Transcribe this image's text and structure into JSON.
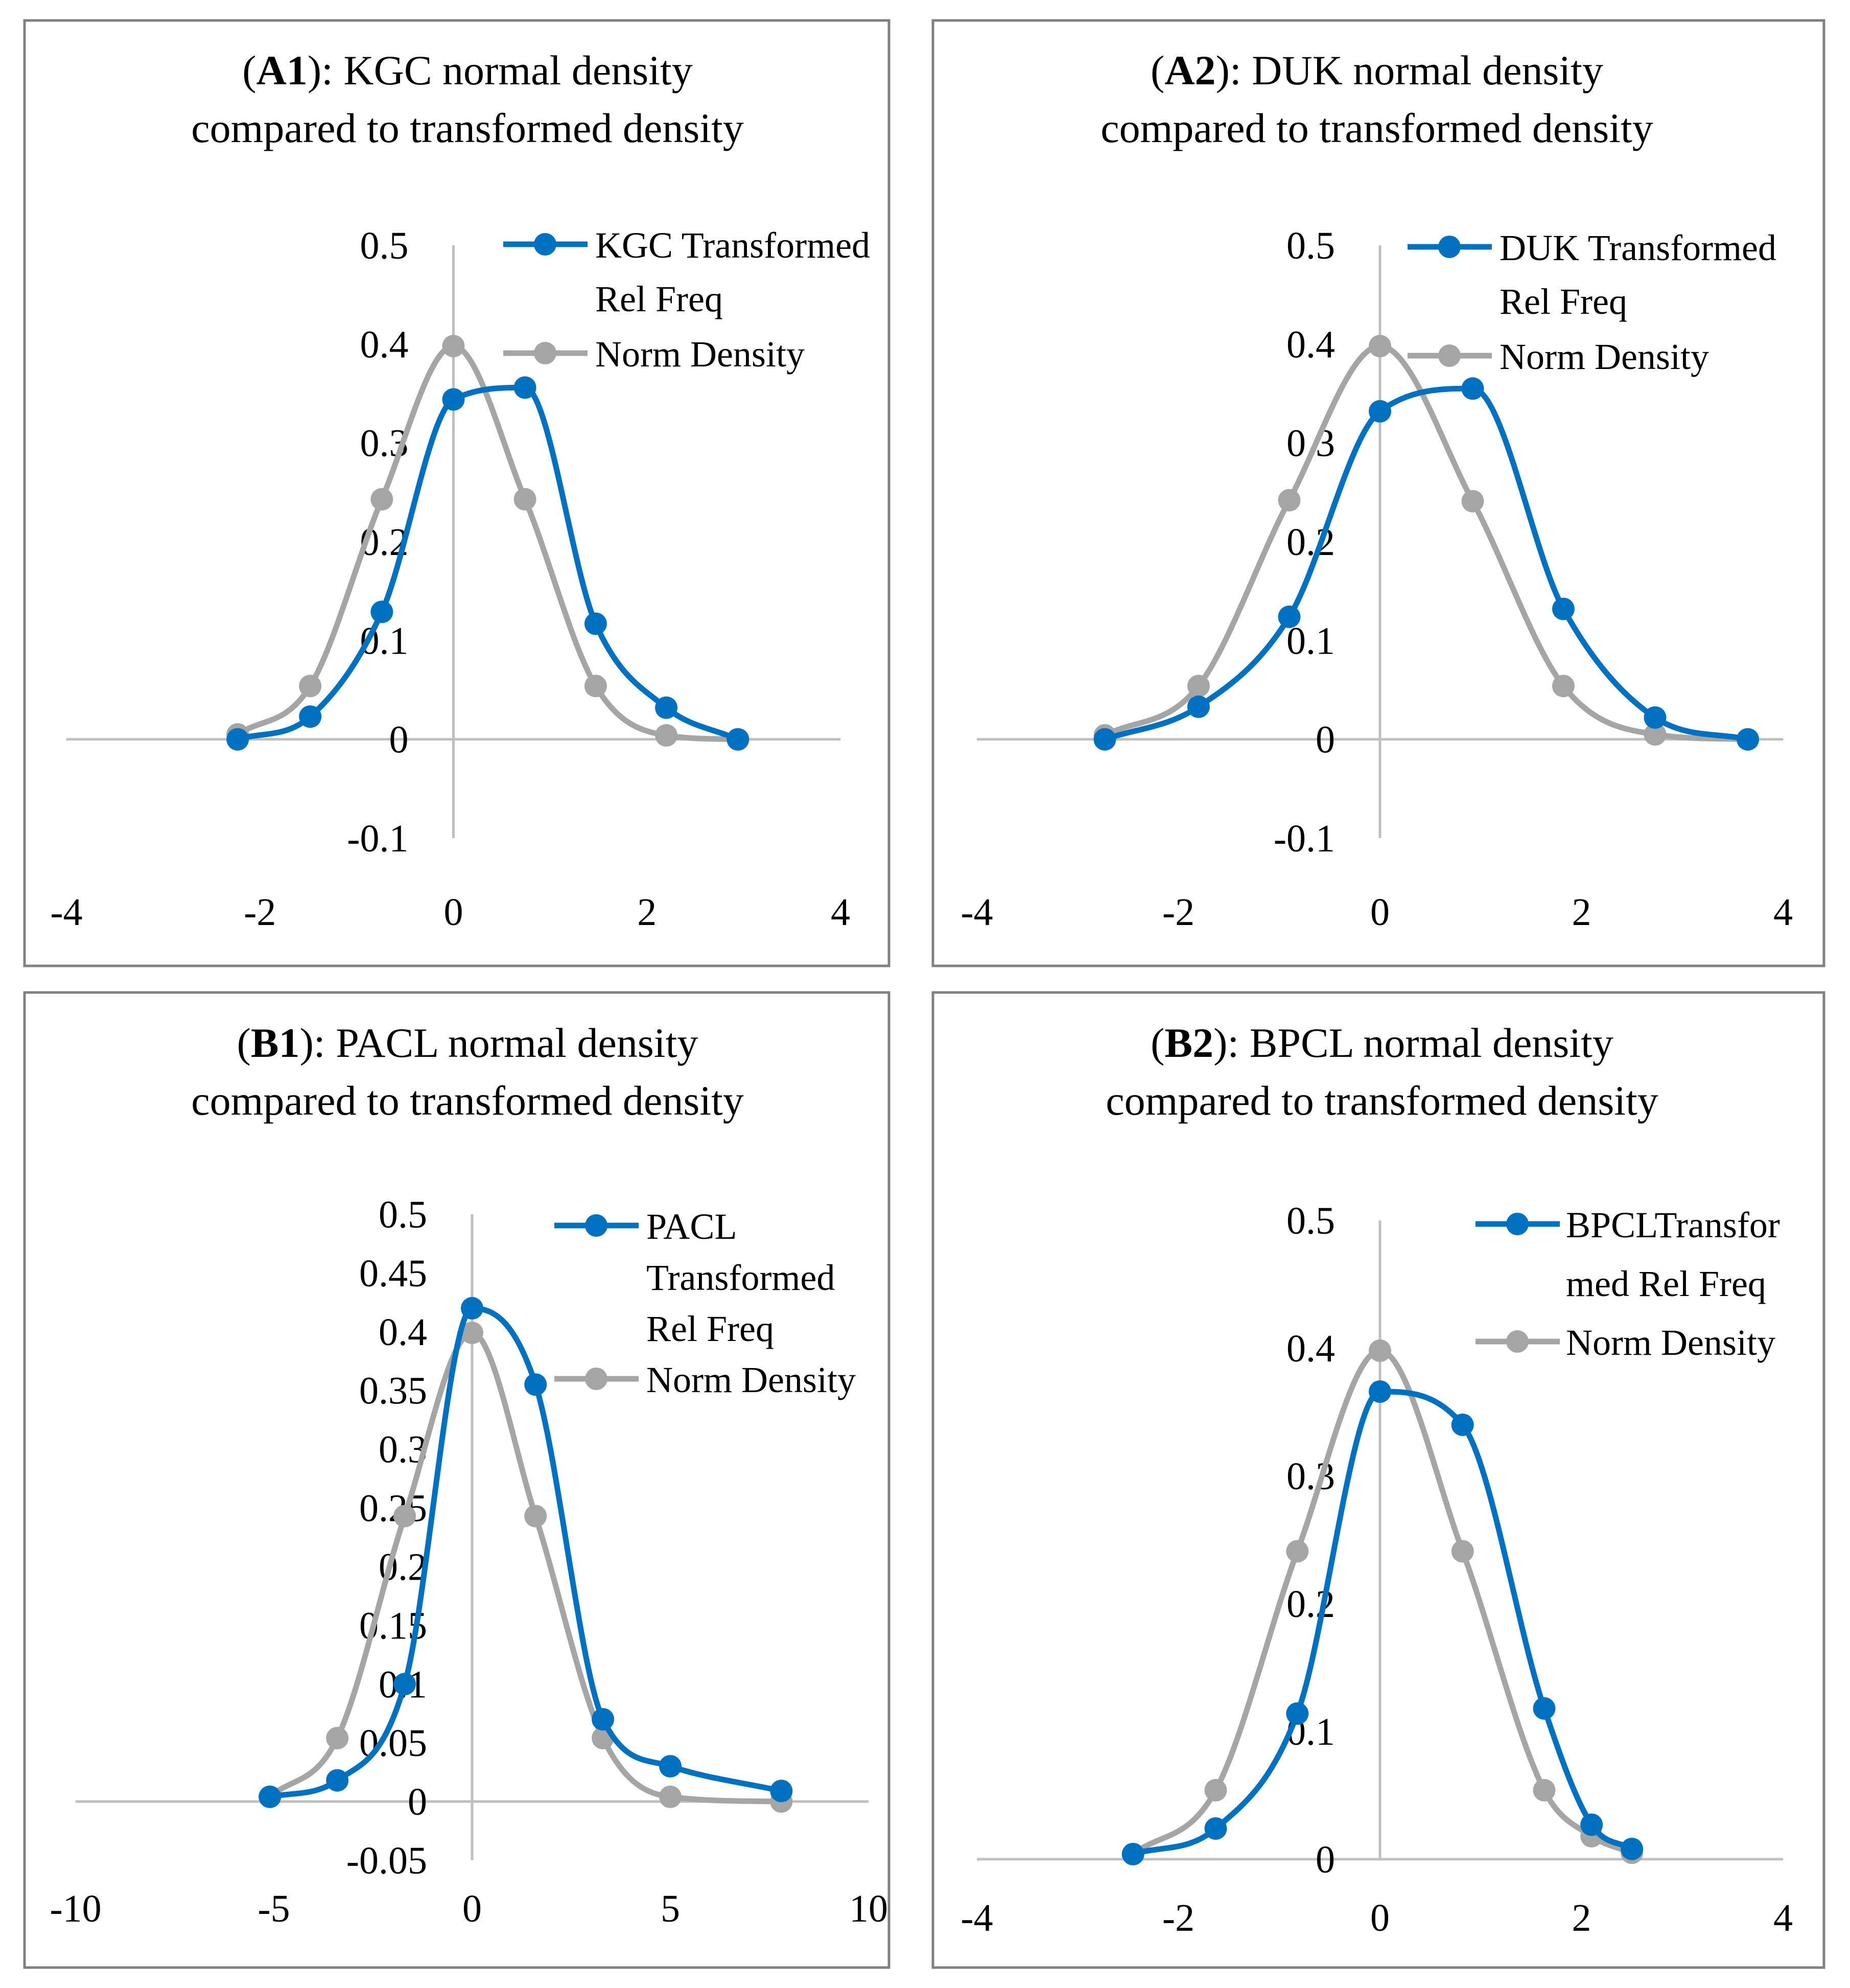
{
  "colors": {
    "transformed": "#0070c0",
    "normal": "#a5a5a5"
  },
  "chart_data": [
    {
      "type": "line",
      "smooth": true,
      "panel_label": "A1",
      "title_rest": ":  KGC normal density",
      "title_line2": "compared to transformed density",
      "xlim": [
        -4,
        4
      ],
      "ylim": [
        -0.1,
        0.5
      ],
      "xticks": [
        "-4",
        "-2",
        "0",
        "2",
        "4"
      ],
      "xtick_values": [
        -4,
        -2,
        0,
        2,
        4
      ],
      "yticks": [
        "-0.1",
        "0",
        "0.1",
        "0.2",
        "0.3",
        "0.4",
        "0.5"
      ],
      "ytick_values": [
        -0.1,
        0,
        0.1,
        0.2,
        0.3,
        0.4,
        0.5
      ],
      "legend_position": "top-right",
      "series": [
        {
          "name_lines": [
            "KGC Transformed",
            "Rel Freq"
          ],
          "color": "#0070c0",
          "x": [
            -2.23,
            -1.48,
            -0.74,
            0,
            0.74,
            1.47,
            2.2,
            2.94
          ],
          "y": [
            0.0,
            0.023,
            0.129,
            0.344,
            0.356,
            0.117,
            0.032,
            0.0
          ]
        },
        {
          "name_lines": [
            "Norm Density"
          ],
          "color": "#a5a5a5",
          "x": [
            -2.23,
            -1.48,
            -0.74,
            0,
            0.74,
            1.47,
            2.2,
            2.94
          ],
          "y": [
            0.005,
            0.054,
            0.243,
            0.398,
            0.243,
            0.054,
            0.004,
            0.0
          ]
        }
      ]
    },
    {
      "type": "line",
      "smooth": true,
      "panel_label": "A2",
      "title_rest": ":  DUK normal density",
      "title_line2": "compared to transformed density",
      "xlim": [
        -4,
        4
      ],
      "ylim": [
        -0.1,
        0.5
      ],
      "xticks": [
        "-4",
        "-2",
        "0",
        "2",
        "4"
      ],
      "xtick_values": [
        -4,
        -2,
        0,
        2,
        4
      ],
      "yticks": [
        "-0.1",
        "0",
        "0.1",
        "0.2",
        "0.3",
        "0.4",
        "0.5"
      ],
      "ytick_values": [
        -0.1,
        0,
        0.1,
        0.2,
        0.3,
        0.4,
        0.5
      ],
      "legend_position": "top-right",
      "series": [
        {
          "name_lines": [
            "DUK Transformed",
            "Rel Freq"
          ],
          "color": "#0070c0",
          "x": [
            -2.73,
            -1.8,
            -0.9,
            0,
            0.92,
            1.82,
            2.73,
            3.65
          ],
          "y": [
            0.0,
            0.033,
            0.124,
            0.332,
            0.355,
            0.132,
            0.022,
            0.0
          ]
        },
        {
          "name_lines": [
            "Norm Density"
          ],
          "color": "#a5a5a5",
          "x": [
            -2.73,
            -1.8,
            -0.9,
            0,
            0.92,
            1.82,
            2.73,
            3.65
          ],
          "y": [
            0.004,
            0.054,
            0.242,
            0.398,
            0.241,
            0.054,
            0.005,
            0.0
          ]
        }
      ]
    },
    {
      "type": "line",
      "smooth": true,
      "panel_label": "B1",
      "title_rest": ":  PACL normal density",
      "title_line2": "compared to transformed density",
      "xlim": [
        -10,
        10
      ],
      "ylim": [
        -0.05,
        0.5
      ],
      "xticks": [
        "-10",
        "-5",
        "0",
        "5",
        "10"
      ],
      "xtick_values": [
        -10,
        -5,
        0,
        5,
        10
      ],
      "yticks": [
        "-0.05",
        "0",
        "0.05",
        "0.1",
        "0.15",
        "0.2",
        "0.25",
        "0.3",
        "0.35",
        "0.4",
        "0.45",
        "0.5"
      ],
      "ytick_values": [
        -0.05,
        0,
        0.05,
        0.1,
        0.15,
        0.2,
        0.25,
        0.3,
        0.35,
        0.4,
        0.45,
        0.5
      ],
      "legend_position": "top-right",
      "series": [
        {
          "name_lines": [
            "PACL",
            "Transformed",
            "Rel Freq"
          ],
          "color": "#0070c0",
          "x": [
            -5.1,
            -3.4,
            -1.7,
            0,
            1.6,
            3.3,
            5.0,
            7.8
          ],
          "y": [
            0.004,
            0.018,
            0.1,
            0.42,
            0.355,
            0.07,
            0.03,
            0.009
          ]
        },
        {
          "name_lines": [
            "Norm Density"
          ],
          "color": "#a5a5a5",
          "x": [
            -5.1,
            -3.4,
            -1.7,
            0,
            1.6,
            3.3,
            5.0,
            7.8
          ],
          "y": [
            0.004,
            0.054,
            0.243,
            0.399,
            0.243,
            0.054,
            0.004,
            0.0
          ]
        }
      ]
    },
    {
      "type": "line",
      "smooth": true,
      "panel_label": "B2",
      "title_rest": ":  BPCL normal density",
      "title_line2": "compared to transformed density",
      "xlim": [
        -4,
        4
      ],
      "ylim": [
        0,
        0.5
      ],
      "xticks": [
        "-4",
        "-2",
        "0",
        "2",
        "4"
      ],
      "xtick_values": [
        -4,
        -2,
        0,
        2,
        4
      ],
      "yticks": [
        "0",
        "0.1",
        "0.2",
        "0.3",
        "0.4",
        "0.5"
      ],
      "ytick_values": [
        0,
        0.1,
        0.2,
        0.3,
        0.4,
        0.5
      ],
      "legend_position": "top-right",
      "series": [
        {
          "name_lines": [
            "BPCLTransfor",
            "med Rel Freq"
          ],
          "color": "#0070c0",
          "x": [
            -2.45,
            -1.63,
            -0.82,
            0,
            0.82,
            1.63,
            2.1,
            2.5
          ],
          "y": [
            0.004,
            0.024,
            0.114,
            0.366,
            0.34,
            0.118,
            0.027,
            0.008
          ]
        },
        {
          "name_lines": [
            "Norm Density"
          ],
          "color": "#a5a5a5",
          "x": [
            -2.45,
            -1.63,
            -0.82,
            0,
            0.82,
            1.63,
            2.1,
            2.5
          ],
          "y": [
            0.004,
            0.054,
            0.241,
            0.398,
            0.241,
            0.054,
            0.018,
            0.005
          ]
        }
      ]
    }
  ]
}
